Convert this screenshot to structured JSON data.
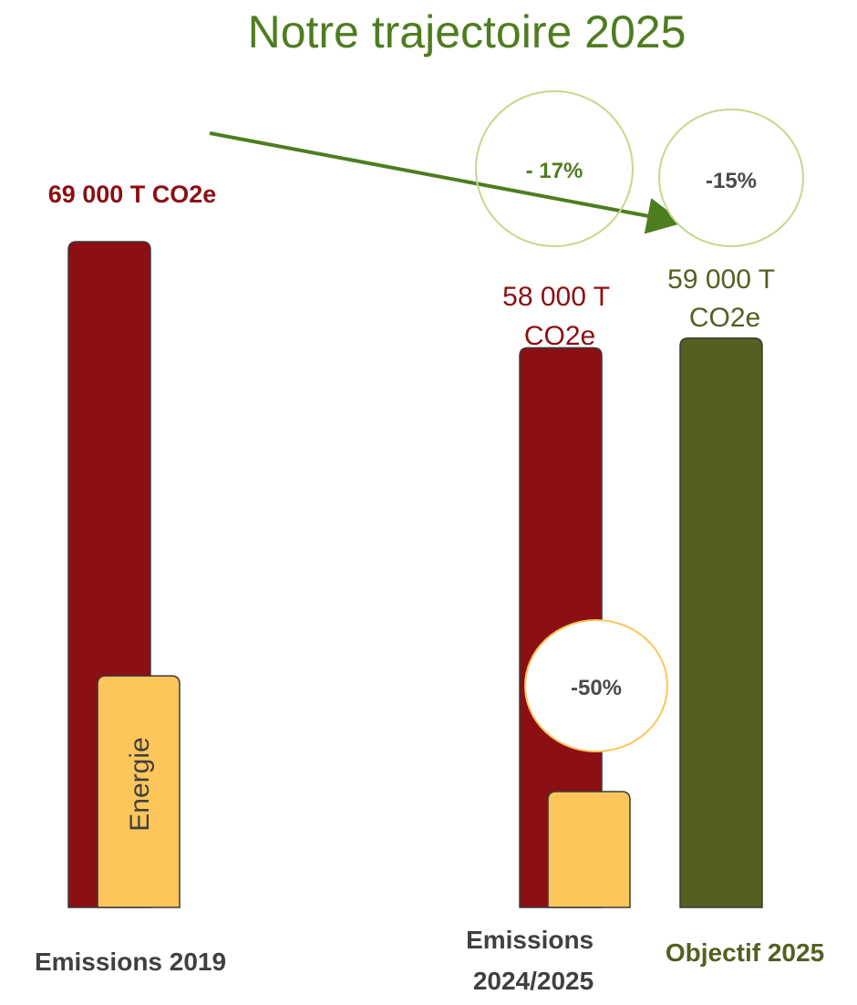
{
  "chart_data": {
    "type": "bar",
    "title": "Notre trajectoire 2025",
    "categories": [
      "Emissions 2019",
      "Emissions 2024/2025",
      "Objectif 2025"
    ],
    "unit": "T CO2e",
    "ylim": [
      0,
      69000
    ],
    "series": [
      {
        "values": [
          69000,
          58000,
          59000
        ],
        "colors": [
          "#8b0f13",
          "#8b0f13",
          "#536021"
        ]
      },
      {
        "name": "Energie",
        "values": [
          24000,
          12000,
          null
        ],
        "color": "#fdc65a"
      }
    ],
    "value_labels": [
      "69 000 T CO2e",
      "58 000 T CO2e",
      "59 000 T CO2e"
    ],
    "badges": [
      "- 17%",
      "-15%",
      "-50%"
    ],
    "colors": {
      "title": "#4e7d20",
      "arrow": "#4e7d20",
      "dark_red": "#8b0f13",
      "olive": "#536021",
      "energy": "#fdc65a",
      "badge_green_border": "#c5d98a",
      "badge_yellow_border": "#fdc65a",
      "badge_text": "#4a4a4a",
      "category_text": "#404040"
    },
    "grid": false,
    "legend": "none"
  }
}
